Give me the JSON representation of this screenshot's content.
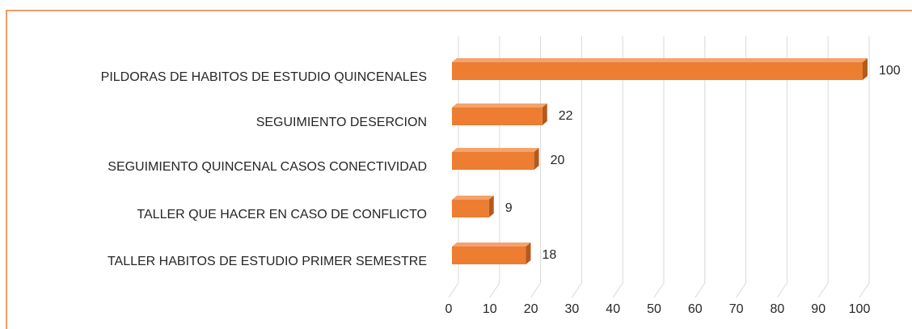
{
  "chart_data": {
    "type": "bar",
    "orientation": "horizontal",
    "categories": [
      "PILDORAS DE HABITOS DE ESTUDIO QUINCENALES",
      "SEGUIMIENTO DESERCION",
      "SEGUIMIENTO QUINCENAL CASOS CONECTIVIDAD",
      "TALLER QUE HACER EN CASO DE CONFLICTO",
      "TALLER HABITOS DE ESTUDIO PRIMER SEMESTRE"
    ],
    "values": [
      100,
      22,
      20,
      9,
      18
    ],
    "color": "#ed7d31",
    "xlim": [
      0,
      100
    ],
    "xticks": [
      0,
      10,
      20,
      30,
      40,
      50,
      60,
      70,
      80,
      90,
      100
    ],
    "grid": true
  }
}
